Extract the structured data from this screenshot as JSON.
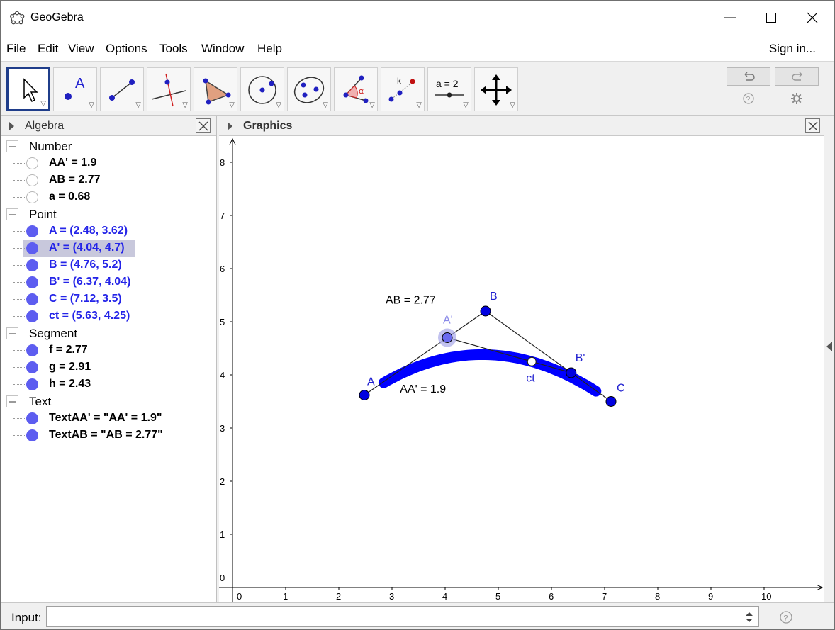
{
  "window": {
    "title": "GeoGebra",
    "controls": [
      "minimize",
      "maximize",
      "close"
    ]
  },
  "menu": {
    "items": [
      "File",
      "Edit",
      "View",
      "Options",
      "Tools",
      "Window",
      "Help"
    ],
    "sign_in": "Sign in..."
  },
  "toolbar": {
    "tools": [
      {
        "name": "move-tool",
        "selected": true
      },
      {
        "name": "point-tool",
        "label": "A"
      },
      {
        "name": "line-tool"
      },
      {
        "name": "perpendicular-line-tool"
      },
      {
        "name": "polygon-tool"
      },
      {
        "name": "circle-tool"
      },
      {
        "name": "conic-tool"
      },
      {
        "name": "angle-tool",
        "label": "α"
      },
      {
        "name": "reflect-tool",
        "label": "k"
      },
      {
        "name": "slider-tool",
        "label": "a = 2"
      },
      {
        "name": "move-graphics-tool"
      }
    ]
  },
  "algebra": {
    "title": "Algebra",
    "groups": [
      {
        "label": "Number",
        "items": [
          {
            "text": "AA' = 1.9",
            "color": "black",
            "visible": false
          },
          {
            "text": "AB = 2.77",
            "color": "black",
            "visible": false
          },
          {
            "text": "a = 0.68",
            "color": "black",
            "visible": false
          }
        ]
      },
      {
        "label": "Point",
        "items": [
          {
            "text": "A = (2.48, 3.62)",
            "color": "blue",
            "visible": true
          },
          {
            "text": "A' = (4.04, 4.7)",
            "color": "blue",
            "visible": true,
            "selected": true
          },
          {
            "text": "B = (4.76, 5.2)",
            "color": "blue",
            "visible": true
          },
          {
            "text": "B' = (6.37, 4.04)",
            "color": "blue",
            "visible": true
          },
          {
            "text": "C = (7.12, 3.5)",
            "color": "blue",
            "visible": true
          },
          {
            "text": "ct = (5.63, 4.25)",
            "color": "blue",
            "visible": true
          }
        ]
      },
      {
        "label": "Segment",
        "items": [
          {
            "text": "f = 2.77",
            "color": "black",
            "visible": true
          },
          {
            "text": "g = 2.91",
            "color": "black",
            "visible": true
          },
          {
            "text": "h = 2.43",
            "color": "black",
            "visible": true
          }
        ]
      },
      {
        "label": "Text",
        "items": [
          {
            "text": "TextAA' = \"AA' = 1.9\"",
            "color": "black",
            "visible": true
          },
          {
            "text": "TextAB = \"AB = 2.77\"",
            "color": "black",
            "visible": true
          }
        ]
      }
    ]
  },
  "graphics": {
    "title": "Graphics",
    "x_ticks": [
      "0",
      "1",
      "2",
      "3",
      "4",
      "5",
      "6",
      "7",
      "8",
      "9",
      "10"
    ],
    "y_ticks": [
      "0",
      "1",
      "2",
      "3",
      "4",
      "5",
      "6",
      "7",
      "8"
    ],
    "points": [
      {
        "label": "A",
        "x": 2.48,
        "y": 3.62
      },
      {
        "label": "A'",
        "x": 4.04,
        "y": 4.7
      },
      {
        "label": "B",
        "x": 4.76,
        "y": 5.2
      },
      {
        "label": "B'",
        "x": 6.37,
        "y": 4.04
      },
      {
        "label": "C",
        "x": 7.12,
        "y": 3.5
      },
      {
        "label": "ct",
        "x": 5.63,
        "y": 4.25
      }
    ],
    "text_AB": "AB = 2.77",
    "text_AA": "AA' = 1.9",
    "point_color": "#0000e0",
    "trace_color": "#0000ff"
  },
  "input": {
    "label": "Input:",
    "value": ""
  }
}
